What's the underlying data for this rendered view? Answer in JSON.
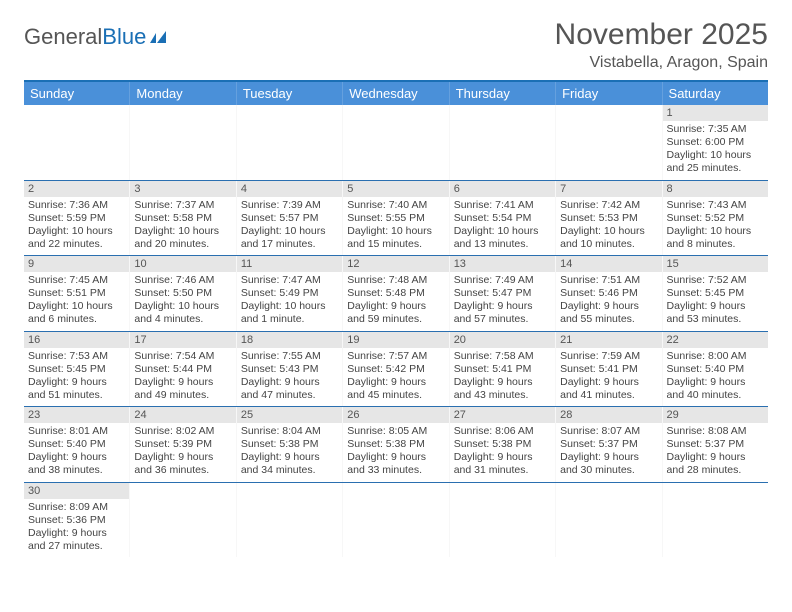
{
  "logo": {
    "text1": "General",
    "text2": "Blue"
  },
  "title": "November 2025",
  "location": "Vistabella, Aragon, Spain",
  "colors": {
    "header_bg": "#4a90d9",
    "header_border_top": "#1a6fb5",
    "week_divider": "#2a6fb0",
    "daynum_bg": "#e6e6e6",
    "text": "#444444",
    "logo_gray": "#555555",
    "logo_blue": "#1a6fb5"
  },
  "weekdays": [
    "Sunday",
    "Monday",
    "Tuesday",
    "Wednesday",
    "Thursday",
    "Friday",
    "Saturday"
  ],
  "weeks": [
    [
      {
        "blank": true
      },
      {
        "blank": true
      },
      {
        "blank": true
      },
      {
        "blank": true
      },
      {
        "blank": true
      },
      {
        "blank": true
      },
      {
        "n": "1",
        "sr": "Sunrise: 7:35 AM",
        "ss": "Sunset: 6:00 PM",
        "dl": "Daylight: 10 hours and 25 minutes."
      }
    ],
    [
      {
        "n": "2",
        "sr": "Sunrise: 7:36 AM",
        "ss": "Sunset: 5:59 PM",
        "dl": "Daylight: 10 hours and 22 minutes."
      },
      {
        "n": "3",
        "sr": "Sunrise: 7:37 AM",
        "ss": "Sunset: 5:58 PM",
        "dl": "Daylight: 10 hours and 20 minutes."
      },
      {
        "n": "4",
        "sr": "Sunrise: 7:39 AM",
        "ss": "Sunset: 5:57 PM",
        "dl": "Daylight: 10 hours and 17 minutes."
      },
      {
        "n": "5",
        "sr": "Sunrise: 7:40 AM",
        "ss": "Sunset: 5:55 PM",
        "dl": "Daylight: 10 hours and 15 minutes."
      },
      {
        "n": "6",
        "sr": "Sunrise: 7:41 AM",
        "ss": "Sunset: 5:54 PM",
        "dl": "Daylight: 10 hours and 13 minutes."
      },
      {
        "n": "7",
        "sr": "Sunrise: 7:42 AM",
        "ss": "Sunset: 5:53 PM",
        "dl": "Daylight: 10 hours and 10 minutes."
      },
      {
        "n": "8",
        "sr": "Sunrise: 7:43 AM",
        "ss": "Sunset: 5:52 PM",
        "dl": "Daylight: 10 hours and 8 minutes."
      }
    ],
    [
      {
        "n": "9",
        "sr": "Sunrise: 7:45 AM",
        "ss": "Sunset: 5:51 PM",
        "dl": "Daylight: 10 hours and 6 minutes."
      },
      {
        "n": "10",
        "sr": "Sunrise: 7:46 AM",
        "ss": "Sunset: 5:50 PM",
        "dl": "Daylight: 10 hours and 4 minutes."
      },
      {
        "n": "11",
        "sr": "Sunrise: 7:47 AM",
        "ss": "Sunset: 5:49 PM",
        "dl": "Daylight: 10 hours and 1 minute."
      },
      {
        "n": "12",
        "sr": "Sunrise: 7:48 AM",
        "ss": "Sunset: 5:48 PM",
        "dl": "Daylight: 9 hours and 59 minutes."
      },
      {
        "n": "13",
        "sr": "Sunrise: 7:49 AM",
        "ss": "Sunset: 5:47 PM",
        "dl": "Daylight: 9 hours and 57 minutes."
      },
      {
        "n": "14",
        "sr": "Sunrise: 7:51 AM",
        "ss": "Sunset: 5:46 PM",
        "dl": "Daylight: 9 hours and 55 minutes."
      },
      {
        "n": "15",
        "sr": "Sunrise: 7:52 AM",
        "ss": "Sunset: 5:45 PM",
        "dl": "Daylight: 9 hours and 53 minutes."
      }
    ],
    [
      {
        "n": "16",
        "sr": "Sunrise: 7:53 AM",
        "ss": "Sunset: 5:45 PM",
        "dl": "Daylight: 9 hours and 51 minutes."
      },
      {
        "n": "17",
        "sr": "Sunrise: 7:54 AM",
        "ss": "Sunset: 5:44 PM",
        "dl": "Daylight: 9 hours and 49 minutes."
      },
      {
        "n": "18",
        "sr": "Sunrise: 7:55 AM",
        "ss": "Sunset: 5:43 PM",
        "dl": "Daylight: 9 hours and 47 minutes."
      },
      {
        "n": "19",
        "sr": "Sunrise: 7:57 AM",
        "ss": "Sunset: 5:42 PM",
        "dl": "Daylight: 9 hours and 45 minutes."
      },
      {
        "n": "20",
        "sr": "Sunrise: 7:58 AM",
        "ss": "Sunset: 5:41 PM",
        "dl": "Daylight: 9 hours and 43 minutes."
      },
      {
        "n": "21",
        "sr": "Sunrise: 7:59 AM",
        "ss": "Sunset: 5:41 PM",
        "dl": "Daylight: 9 hours and 41 minutes."
      },
      {
        "n": "22",
        "sr": "Sunrise: 8:00 AM",
        "ss": "Sunset: 5:40 PM",
        "dl": "Daylight: 9 hours and 40 minutes."
      }
    ],
    [
      {
        "n": "23",
        "sr": "Sunrise: 8:01 AM",
        "ss": "Sunset: 5:40 PM",
        "dl": "Daylight: 9 hours and 38 minutes."
      },
      {
        "n": "24",
        "sr": "Sunrise: 8:02 AM",
        "ss": "Sunset: 5:39 PM",
        "dl": "Daylight: 9 hours and 36 minutes."
      },
      {
        "n": "25",
        "sr": "Sunrise: 8:04 AM",
        "ss": "Sunset: 5:38 PM",
        "dl": "Daylight: 9 hours and 34 minutes."
      },
      {
        "n": "26",
        "sr": "Sunrise: 8:05 AM",
        "ss": "Sunset: 5:38 PM",
        "dl": "Daylight: 9 hours and 33 minutes."
      },
      {
        "n": "27",
        "sr": "Sunrise: 8:06 AM",
        "ss": "Sunset: 5:38 PM",
        "dl": "Daylight: 9 hours and 31 minutes."
      },
      {
        "n": "28",
        "sr": "Sunrise: 8:07 AM",
        "ss": "Sunset: 5:37 PM",
        "dl": "Daylight: 9 hours and 30 minutes."
      },
      {
        "n": "29",
        "sr": "Sunrise: 8:08 AM",
        "ss": "Sunset: 5:37 PM",
        "dl": "Daylight: 9 hours and 28 minutes."
      }
    ],
    [
      {
        "n": "30",
        "sr": "Sunrise: 8:09 AM",
        "ss": "Sunset: 5:36 PM",
        "dl": "Daylight: 9 hours and 27 minutes."
      },
      {
        "blank": true
      },
      {
        "blank": true
      },
      {
        "blank": true
      },
      {
        "blank": true
      },
      {
        "blank": true
      },
      {
        "blank": true
      }
    ]
  ]
}
